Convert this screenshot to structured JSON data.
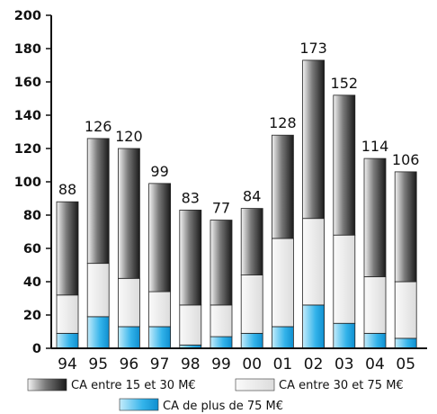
{
  "chart_data": {
    "type": "bar",
    "stacked": true,
    "title": "",
    "xlabel": "",
    "ylabel": "",
    "ylim": [
      0,
      200
    ],
    "yticks": [
      0,
      20,
      40,
      60,
      80,
      100,
      120,
      140,
      160,
      180,
      200
    ],
    "categories": [
      "94",
      "95",
      "96",
      "97",
      "98",
      "99",
      "00",
      "01",
      "02",
      "03",
      "04",
      "05"
    ],
    "totals": [
      88,
      126,
      120,
      99,
      83,
      77,
      84,
      128,
      173,
      152,
      114,
      106
    ],
    "series": [
      {
        "name": "CA de plus de 75 M€",
        "color": "#29a9e0",
        "values": [
          9,
          19,
          13,
          13,
          2,
          7,
          9,
          13,
          26,
          15,
          9,
          6
        ]
      },
      {
        "name": "CA entre 30 et 75 M€",
        "color": "#e4e4e4",
        "values": [
          23,
          32,
          29,
          21,
          24,
          19,
          35,
          53,
          52,
          53,
          34,
          34
        ]
      },
      {
        "name": "CA entre 15 et 30 M€",
        "color": "#3a3a3a",
        "values": [
          56,
          75,
          78,
          65,
          57,
          51,
          40,
          62,
          95,
          84,
          71,
          66
        ]
      }
    ],
    "grid": false,
    "legend_position": "bottom"
  }
}
